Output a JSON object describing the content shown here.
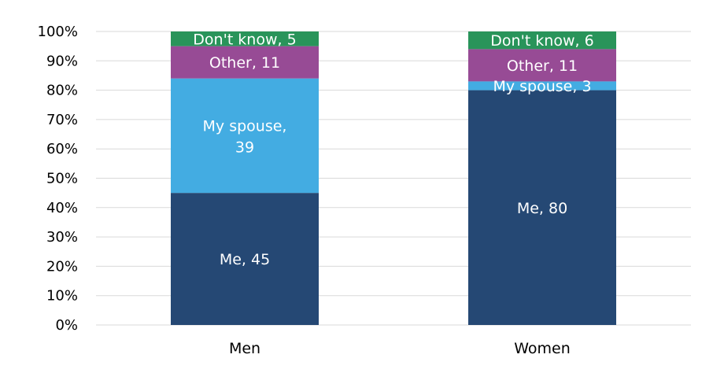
{
  "chart_data": {
    "type": "bar",
    "stacked": true,
    "categories": [
      "Men",
      "Women"
    ],
    "series": [
      {
        "name": "Me",
        "color": "#254874",
        "values": [
          45,
          80
        ],
        "labels": [
          "Me, 45",
          "Me, 80"
        ]
      },
      {
        "name": "My spouse",
        "color": "#43ace2",
        "values": [
          39,
          3
        ],
        "labels": [
          "My spouse, 39",
          "My spouse, 3"
        ]
      },
      {
        "name": "Other",
        "color": "#974b95",
        "values": [
          11,
          11
        ],
        "labels": [
          "Other, 11",
          "Other, 11"
        ]
      },
      {
        "name": "Don't know",
        "color": "#29945a",
        "values": [
          5,
          6
        ],
        "labels": [
          "Don't know, 5",
          "Don't know, 6"
        ]
      }
    ],
    "ylim": [
      0,
      100
    ],
    "y_ticks": [
      "0%",
      "10%",
      "20%",
      "30%",
      "40%",
      "50%",
      "60%",
      "70%",
      "80%",
      "90%",
      "100%"
    ],
    "grid": true,
    "legend": "none"
  }
}
